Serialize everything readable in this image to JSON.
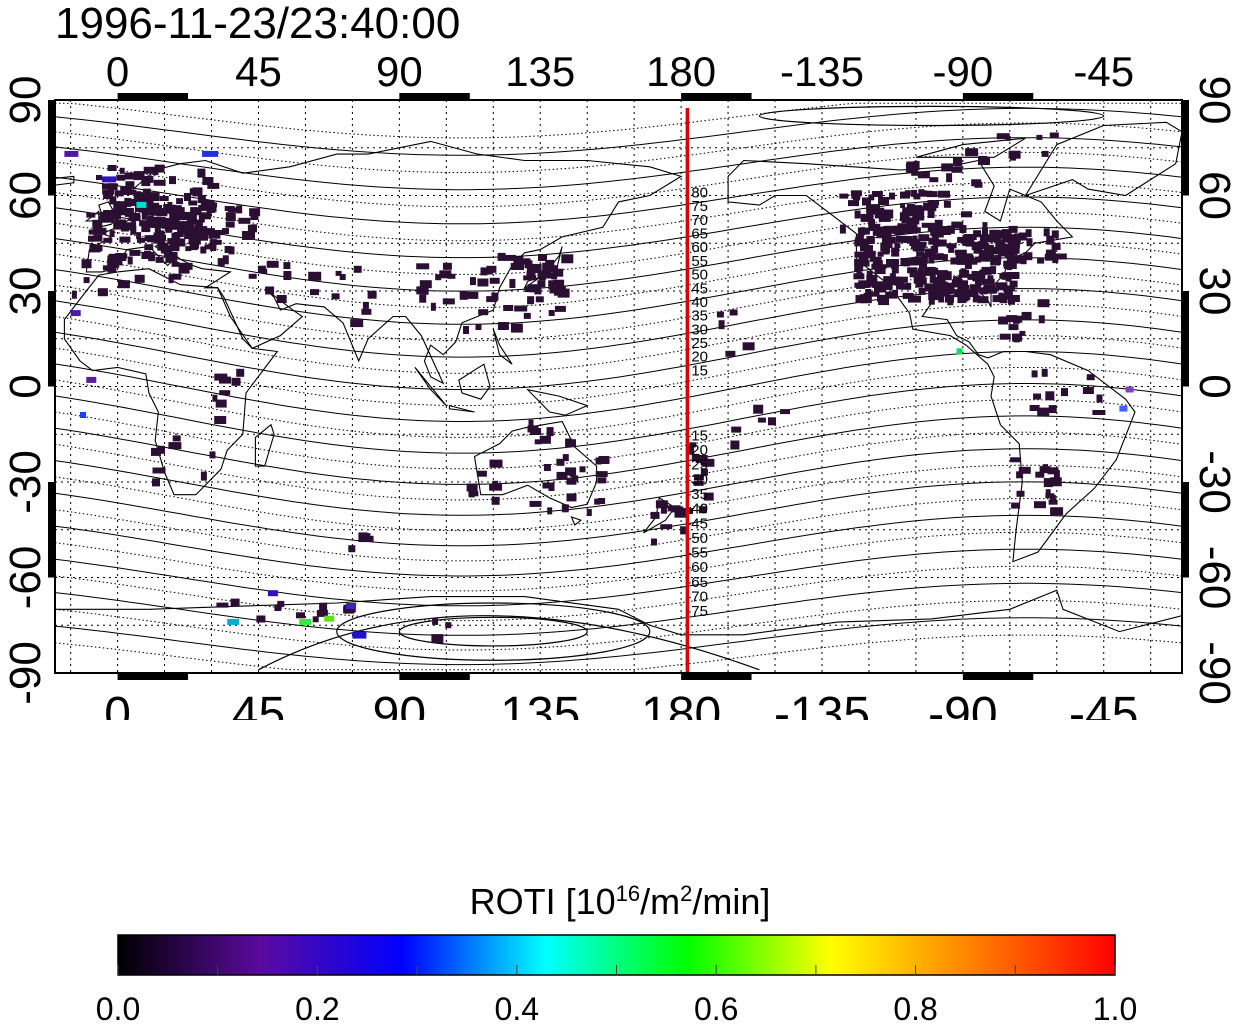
{
  "title": "1996-11-23/23:40:00",
  "map": {
    "lon_tick_labels": [
      "0",
      "45",
      "90",
      "135",
      "180",
      "-135",
      "-90",
      "-45"
    ],
    "lat_tick_labels": [
      "90",
      "60",
      "30",
      "0",
      "-30",
      "-60",
      "-90"
    ],
    "lon_ticks_deg": [
      0,
      45,
      90,
      135,
      180,
      225,
      270,
      315
    ],
    "lat_ticks_deg": [
      90,
      60,
      30,
      0,
      -30,
      -60,
      -90
    ],
    "lon_range_deg": [
      -20,
      340
    ],
    "lat_range_deg": [
      -90,
      90
    ],
    "grid": "dotted",
    "marker_line_lon_deg": 182,
    "marker_line_color": "#dd0000",
    "contour_labels": [
      "80",
      "75",
      "70",
      "65",
      "60",
      "55",
      "50",
      "45",
      "40",
      "35",
      "30",
      "25",
      "20",
      "15",
      "-15",
      "-20",
      "-25",
      "-30",
      "-35",
      "-40",
      "-45",
      "-50",
      "-55",
      "-60",
      "-65",
      "-70",
      "-75"
    ],
    "data_color": "#2a0f33"
  },
  "colorbar": {
    "title_text": "ROTI  [10",
    "title_sup1": "16",
    "title_mid": "/m",
    "title_sup2": "2",
    "title_end": "/min]",
    "tick_labels": [
      "0.0",
      "0.2",
      "0.4",
      "0.6",
      "0.8",
      "1.0"
    ],
    "range": [
      0.0,
      1.0
    ],
    "colors": [
      "#000000",
      "#5a0a9e",
      "#0000ff",
      "#00ffff",
      "#00ff00",
      "#ffff00",
      "#ff8000",
      "#ff0000"
    ]
  }
}
